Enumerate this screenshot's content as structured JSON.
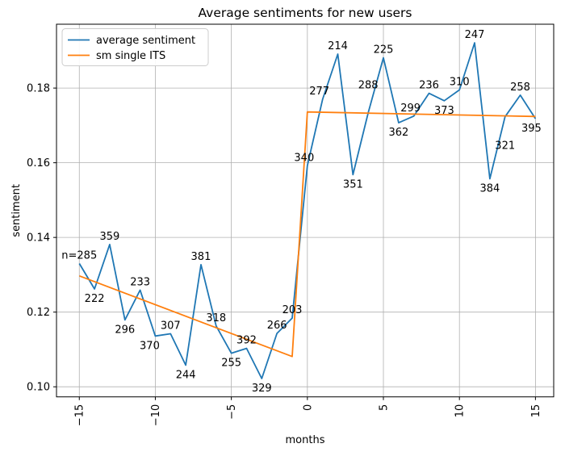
{
  "figure": {
    "background": "#ffffff",
    "title": "Average sentiments for new users"
  },
  "chart_data": {
    "type": "line",
    "title": "Average sentiments for new users",
    "xlabel": "months",
    "ylabel": "sentiment",
    "xlim": [
      -16.5,
      16.2
    ],
    "ylim": [
      0.0973,
      0.1971
    ],
    "grid": true,
    "grid_color": "#b0b0b0",
    "spine_color": "#000000",
    "xticks": {
      "values": [
        -15,
        -10,
        -5,
        0,
        5,
        10,
        15
      ],
      "labels": [
        "−15",
        "−10",
        "−5",
        "0",
        "5",
        "10",
        "15"
      ],
      "rotation": 90
    },
    "yticks": {
      "values": [
        0.1,
        0.12,
        0.14,
        0.16,
        0.18
      ],
      "labels": [
        "0.10",
        "0.12",
        "0.14",
        "0.16",
        "0.18"
      ]
    },
    "legend": {
      "position": "upper left",
      "entries": [
        {
          "label": "average sentiment",
          "color": "#1f77b4"
        },
        {
          "label": "sm single ITS",
          "color": "#ff7f0e"
        }
      ]
    },
    "series": [
      {
        "name": "average sentiment",
        "color": "#1f77b4",
        "x": [
          -15,
          -14,
          -13,
          -12,
          -11,
          -10,
          -9,
          -8,
          -7,
          -6,
          -5,
          -4,
          -3,
          -2,
          -1,
          0,
          1,
          2,
          3,
          4,
          5,
          6,
          7,
          8,
          9,
          10,
          11,
          12,
          13,
          14,
          15
        ],
        "y": [
          0.133,
          0.1262,
          0.1381,
          0.1179,
          0.1259,
          0.1136,
          0.1142,
          0.1058,
          0.1327,
          0.1163,
          0.109,
          0.1103,
          0.1022,
          0.1143,
          0.1184,
          0.1592,
          0.177,
          0.1891,
          0.1568,
          0.1734,
          0.1881,
          0.1707,
          0.1725,
          0.1786,
          0.1766,
          0.1795,
          0.1921,
          0.1557,
          0.1723,
          0.1781,
          0.1718
        ],
        "point_labels": [
          {
            "text": "n=285",
            "side": "above"
          },
          {
            "text": "222",
            "side": "below"
          },
          {
            "text": "359",
            "side": "above"
          },
          {
            "text": "296",
            "side": "below"
          },
          {
            "text": "233",
            "side": "above"
          },
          {
            "text": "370",
            "side": "below",
            "dx": -7
          },
          {
            "text": "307",
            "side": "above"
          },
          {
            "text": "244",
            "side": "below"
          },
          {
            "text": "381",
            "side": "above"
          },
          {
            "text": "318",
            "side": "above"
          },
          {
            "text": "255",
            "side": "below"
          },
          {
            "text": "392",
            "side": "above"
          },
          {
            "text": "329",
            "side": "below"
          },
          {
            "text": "266",
            "side": "above"
          },
          {
            "text": "203",
            "side": "above"
          },
          {
            "text": "340",
            "side": "above",
            "dx": -4
          },
          {
            "text": "277",
            "side": "above",
            "dx": -4
          },
          {
            "text": "214",
            "side": "above"
          },
          {
            "text": "351",
            "side": "below"
          },
          {
            "text": "288",
            "side": "above",
            "dy": -30
          },
          {
            "text": "225",
            "side": "above"
          },
          {
            "text": "362",
            "side": "below"
          },
          {
            "text": "299",
            "side": "above",
            "dx": -4
          },
          {
            "text": "236",
            "side": "above"
          },
          {
            "text": "373",
            "side": "below"
          },
          {
            "text": "310",
            "side": "above"
          },
          {
            "text": "247",
            "side": "above"
          },
          {
            "text": "384",
            "side": "below"
          },
          {
            "text": "321",
            "side": "below",
            "dy": 40
          },
          {
            "text": "258",
            "side": "above"
          },
          {
            "text": "395",
            "side": "below",
            "dx": -5
          }
        ]
      },
      {
        "name": "sm single ITS",
        "color": "#ff7f0e",
        "x": [
          -15,
          -1,
          0,
          15
        ],
        "y": [
          0.1297,
          0.1081,
          0.1736,
          0.1724
        ],
        "point_labels": []
      }
    ]
  }
}
